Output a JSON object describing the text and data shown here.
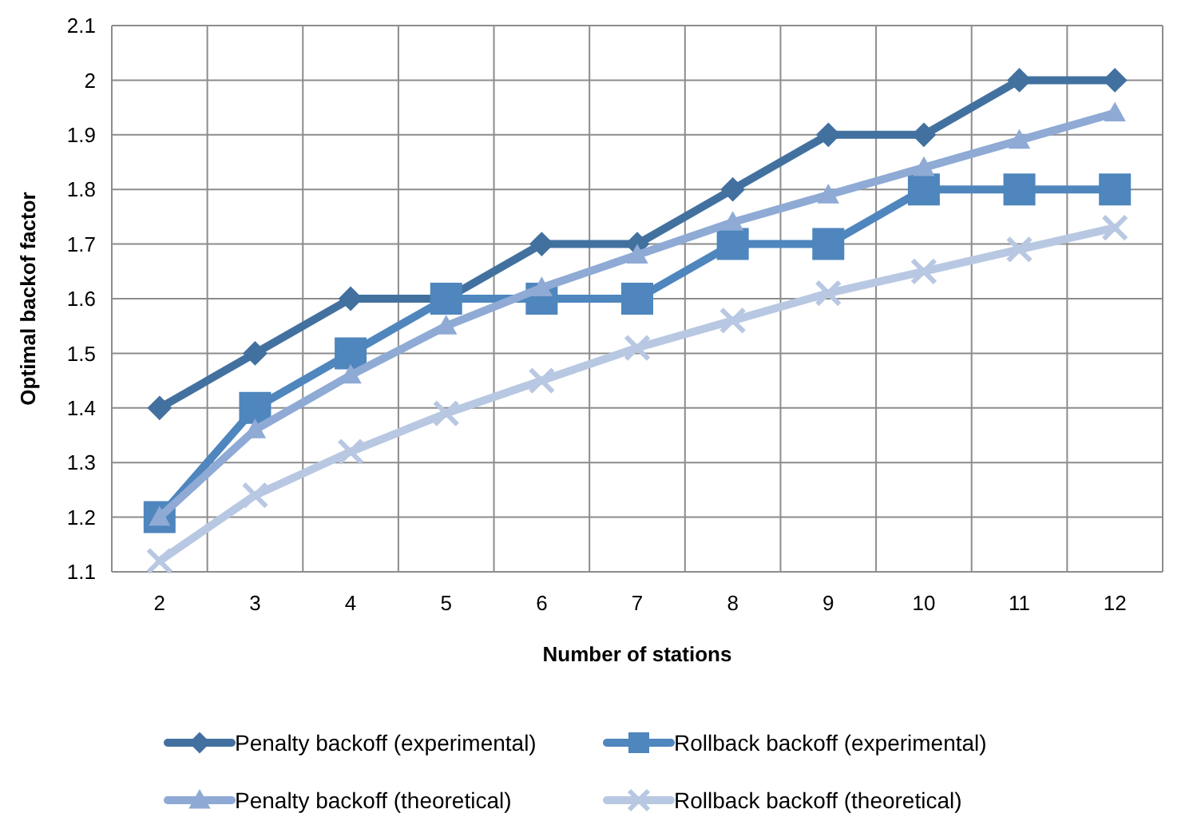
{
  "chart_data": {
    "type": "line",
    "xlabel": "Number of stations",
    "ylabel": "Optimal backof factor",
    "categories": [
      "2",
      "3",
      "4",
      "5",
      "6",
      "7",
      "8",
      "9",
      "10",
      "11",
      "12"
    ],
    "ylim": [
      1.1,
      2.1
    ],
    "yticks": [
      1.1,
      1.2,
      1.3,
      1.4,
      1.5,
      1.6,
      1.7,
      1.8,
      1.9,
      {
        "value": 2,
        "label": "2"
      },
      2.1
    ],
    "grid": true,
    "legend": "bottom",
    "series": [
      {
        "name": "Penalty backoff (experimental)",
        "color": "#4271a0",
        "marker": "diamond",
        "values": [
          1.4,
          1.5,
          1.6,
          1.6,
          1.7,
          1.7,
          1.8,
          1.9,
          1.9,
          2,
          2
        ]
      },
      {
        "name": "Rollback backoff (experimental)",
        "color": "#4e86bd",
        "marker": "square",
        "values": [
          1.2,
          1.4,
          1.5,
          1.6,
          1.6,
          1.6,
          1.7,
          1.7,
          1.8,
          1.8,
          1.8
        ]
      },
      {
        "name": "Penalty backoff (theoretical)",
        "color": "#8eaad5",
        "marker": "triangle",
        "values": [
          1.2,
          1.36,
          1.46,
          1.55,
          1.62,
          1.68,
          1.74,
          1.79,
          1.84,
          1.89,
          1.94
        ]
      },
      {
        "name": "Rollback backoff (theoretical)",
        "color": "#b8c8e2",
        "marker": "cross",
        "values": [
          1.12,
          1.24,
          1.32,
          1.39,
          1.45,
          1.51,
          1.56,
          1.61,
          1.65,
          1.69,
          1.73
        ]
      }
    ]
  }
}
